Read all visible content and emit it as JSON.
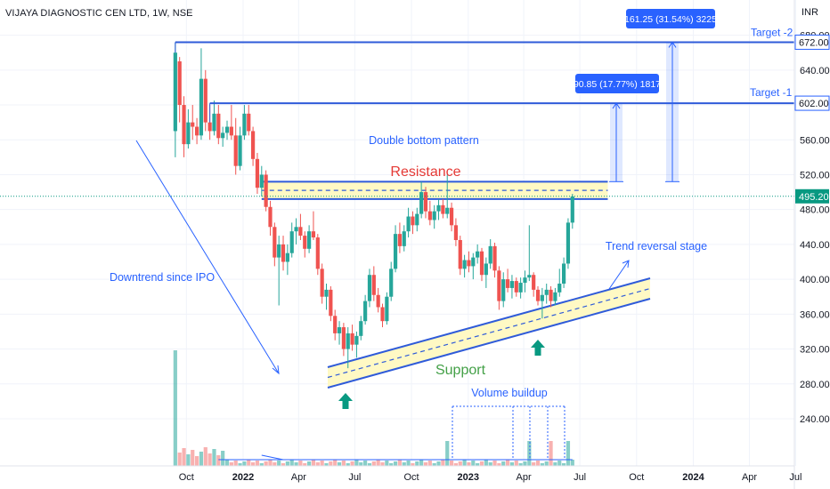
{
  "header": {
    "title": "VIJAYA DIAGNOSTIC CEN LTD, 1W, NSE",
    "currency": "INR"
  },
  "chart_data": {
    "type": "candlestick",
    "symbol": "VIJAYA DIAGNOSTIC CEN LTD",
    "interval": "1W",
    "exchange": "NSE",
    "y_axis": {
      "range": [
        190,
        700
      ],
      "ticks": [
        240,
        280,
        320,
        360,
        400,
        440,
        480,
        520,
        560,
        600,
        640,
        680
      ],
      "tick_labels": [
        "240.00",
        "280.00",
        "320.00",
        "360.00",
        "400.00",
        "440.00",
        "480.00",
        "520.00",
        "560.00",
        "600.00",
        "640.00",
        "680.00"
      ]
    },
    "x_axis": {
      "range": [
        "2021-09-06",
        "2024-06-10"
      ],
      "ticks": [
        {
          "date": "2021-10-01",
          "label": "Oct"
        },
        {
          "date": "2022-01-01",
          "label": "2022"
        },
        {
          "date": "2022-04-01",
          "label": "Apr"
        },
        {
          "date": "2022-07-01",
          "label": "Jul"
        },
        {
          "date": "2022-10-01",
          "label": "Oct"
        },
        {
          "date": "2023-01-01",
          "label": "2023"
        },
        {
          "date": "2023-04-01",
          "label": "Apr"
        },
        {
          "date": "2023-07-01",
          "label": "Jul"
        },
        {
          "date": "2023-10-01",
          "label": "Oct"
        },
        {
          "date": "2024-01-01",
          "label": "2024"
        },
        {
          "date": "2024-04-01",
          "label": "Apr"
        },
        {
          "date": "2024-06-15",
          "label": "Jul"
        }
      ]
    },
    "bold_tick_labels": [
      "2022",
      "2023",
      "2024"
    ],
    "price_labels": [
      {
        "value": 672,
        "label": "672.00",
        "style": "outline-blue"
      },
      {
        "value": 602,
        "label": "602.00",
        "style": "outline-blue"
      },
      {
        "value": 495.2,
        "label": "495.20",
        "style": "filled-green"
      }
    ],
    "current_price": 495.2,
    "candles": [
      {
        "d": "2021-09-13",
        "o": 570,
        "h": 672,
        "l": 540,
        "c": 660
      },
      {
        "d": "2021-09-20",
        "o": 650,
        "h": 655,
        "l": 580,
        "c": 600
      },
      {
        "d": "2021-09-27",
        "o": 600,
        "h": 610,
        "l": 540,
        "c": 555
      },
      {
        "d": "2021-10-04",
        "o": 555,
        "h": 595,
        "l": 550,
        "c": 580
      },
      {
        "d": "2021-10-11",
        "o": 580,
        "h": 600,
        "l": 560,
        "c": 575
      },
      {
        "d": "2021-10-18",
        "o": 575,
        "h": 585,
        "l": 555,
        "c": 565
      },
      {
        "d": "2021-10-25",
        "o": 565,
        "h": 665,
        "l": 560,
        "c": 630
      },
      {
        "d": "2021-11-01",
        "o": 630,
        "h": 640,
        "l": 570,
        "c": 580
      },
      {
        "d": "2021-11-08",
        "o": 580,
        "h": 600,
        "l": 560,
        "c": 570
      },
      {
        "d": "2021-11-15",
        "o": 570,
        "h": 605,
        "l": 565,
        "c": 590
      },
      {
        "d": "2021-11-22",
        "o": 590,
        "h": 600,
        "l": 555,
        "c": 562
      },
      {
        "d": "2021-11-29",
        "o": 562,
        "h": 575,
        "l": 552,
        "c": 568
      },
      {
        "d": "2021-12-06",
        "o": 568,
        "h": 582,
        "l": 560,
        "c": 575
      },
      {
        "d": "2021-12-13",
        "o": 575,
        "h": 600,
        "l": 560,
        "c": 565
      },
      {
        "d": "2021-12-20",
        "o": 565,
        "h": 585,
        "l": 520,
        "c": 530
      },
      {
        "d": "2021-12-27",
        "o": 530,
        "h": 575,
        "l": 525,
        "c": 565
      },
      {
        "d": "2022-01-03",
        "o": 565,
        "h": 600,
        "l": 560,
        "c": 590
      },
      {
        "d": "2022-01-10",
        "o": 590,
        "h": 600,
        "l": 565,
        "c": 570
      },
      {
        "d": "2022-01-17",
        "o": 570,
        "h": 575,
        "l": 530,
        "c": 538
      },
      {
        "d": "2022-01-24",
        "o": 538,
        "h": 545,
        "l": 498,
        "c": 505
      },
      {
        "d": "2022-01-31",
        "o": 505,
        "h": 530,
        "l": 495,
        "c": 520
      },
      {
        "d": "2022-02-07",
        "o": 520,
        "h": 525,
        "l": 478,
        "c": 483
      },
      {
        "d": "2022-02-14",
        "o": 483,
        "h": 490,
        "l": 450,
        "c": 460
      },
      {
        "d": "2022-02-21",
        "o": 460,
        "h": 465,
        "l": 415,
        "c": 425
      },
      {
        "d": "2022-02-28",
        "o": 425,
        "h": 450,
        "l": 370,
        "c": 440
      },
      {
        "d": "2022-03-07",
        "o": 440,
        "h": 450,
        "l": 410,
        "c": 420
      },
      {
        "d": "2022-03-14",
        "o": 420,
        "h": 440,
        "l": 405,
        "c": 430
      },
      {
        "d": "2022-03-21",
        "o": 430,
        "h": 465,
        "l": 425,
        "c": 455
      },
      {
        "d": "2022-03-28",
        "o": 455,
        "h": 470,
        "l": 440,
        "c": 460
      },
      {
        "d": "2022-04-04",
        "o": 460,
        "h": 475,
        "l": 445,
        "c": 450
      },
      {
        "d": "2022-04-11",
        "o": 450,
        "h": 455,
        "l": 425,
        "c": 435
      },
      {
        "d": "2022-04-18",
        "o": 435,
        "h": 462,
        "l": 430,
        "c": 455
      },
      {
        "d": "2022-04-25",
        "o": 455,
        "h": 478,
        "l": 445,
        "c": 448
      },
      {
        "d": "2022-05-02",
        "o": 448,
        "h": 452,
        "l": 405,
        "c": 412
      },
      {
        "d": "2022-05-09",
        "o": 412,
        "h": 418,
        "l": 372,
        "c": 380
      },
      {
        "d": "2022-05-16",
        "o": 380,
        "h": 395,
        "l": 365,
        "c": 388
      },
      {
        "d": "2022-05-23",
        "o": 388,
        "h": 392,
        "l": 352,
        "c": 358
      },
      {
        "d": "2022-05-30",
        "o": 358,
        "h": 365,
        "l": 330,
        "c": 338
      },
      {
        "d": "2022-06-06",
        "o": 338,
        "h": 352,
        "l": 325,
        "c": 345
      },
      {
        "d": "2022-06-13",
        "o": 345,
        "h": 350,
        "l": 312,
        "c": 320
      },
      {
        "d": "2022-06-20",
        "o": 320,
        "h": 345,
        "l": 298,
        "c": 338
      },
      {
        "d": "2022-06-27",
        "o": 338,
        "h": 348,
        "l": 318,
        "c": 325
      },
      {
        "d": "2022-07-04",
        "o": 325,
        "h": 340,
        "l": 310,
        "c": 335
      },
      {
        "d": "2022-07-11",
        "o": 335,
        "h": 358,
        "l": 330,
        "c": 352
      },
      {
        "d": "2022-07-18",
        "o": 352,
        "h": 382,
        "l": 348,
        "c": 375
      },
      {
        "d": "2022-07-25",
        "o": 375,
        "h": 412,
        "l": 368,
        "c": 405
      },
      {
        "d": "2022-08-01",
        "o": 405,
        "h": 415,
        "l": 375,
        "c": 382
      },
      {
        "d": "2022-08-08",
        "o": 382,
        "h": 390,
        "l": 362,
        "c": 368
      },
      {
        "d": "2022-08-15",
        "o": 368,
        "h": 372,
        "l": 345,
        "c": 352
      },
      {
        "d": "2022-08-22",
        "o": 352,
        "h": 385,
        "l": 348,
        "c": 380
      },
      {
        "d": "2022-08-29",
        "o": 380,
        "h": 420,
        "l": 375,
        "c": 412
      },
      {
        "d": "2022-09-05",
        "o": 412,
        "h": 462,
        "l": 408,
        "c": 452
      },
      {
        "d": "2022-09-12",
        "o": 452,
        "h": 465,
        "l": 430,
        "c": 438
      },
      {
        "d": "2022-09-19",
        "o": 438,
        "h": 462,
        "l": 432,
        "c": 455
      },
      {
        "d": "2022-09-26",
        "o": 455,
        "h": 482,
        "l": 448,
        "c": 472
      },
      {
        "d": "2022-10-03",
        "o": 472,
        "h": 478,
        "l": 452,
        "c": 462
      },
      {
        "d": "2022-10-10",
        "o": 462,
        "h": 482,
        "l": 455,
        "c": 475
      },
      {
        "d": "2022-10-17",
        "o": 475,
        "h": 512,
        "l": 470,
        "c": 500
      },
      {
        "d": "2022-10-24",
        "o": 500,
        "h": 506,
        "l": 470,
        "c": 478
      },
      {
        "d": "2022-10-31",
        "o": 478,
        "h": 490,
        "l": 462,
        "c": 468
      },
      {
        "d": "2022-11-07",
        "o": 468,
        "h": 485,
        "l": 458,
        "c": 478
      },
      {
        "d": "2022-11-14",
        "o": 478,
        "h": 492,
        "l": 468,
        "c": 485
      },
      {
        "d": "2022-11-21",
        "o": 485,
        "h": 492,
        "l": 470,
        "c": 475
      },
      {
        "d": "2022-11-28",
        "o": 475,
        "h": 520,
        "l": 470,
        "c": 482
      },
      {
        "d": "2022-12-05",
        "o": 482,
        "h": 488,
        "l": 455,
        "c": 462
      },
      {
        "d": "2022-12-12",
        "o": 462,
        "h": 470,
        "l": 438,
        "c": 445
      },
      {
        "d": "2022-12-19",
        "o": 445,
        "h": 450,
        "l": 405,
        "c": 412
      },
      {
        "d": "2022-12-26",
        "o": 412,
        "h": 428,
        "l": 402,
        "c": 422
      },
      {
        "d": "2023-01-02",
        "o": 422,
        "h": 432,
        "l": 408,
        "c": 415
      },
      {
        "d": "2023-01-09",
        "o": 415,
        "h": 430,
        "l": 400,
        "c": 425
      },
      {
        "d": "2023-01-16",
        "o": 425,
        "h": 440,
        "l": 418,
        "c": 432
      },
      {
        "d": "2023-01-23",
        "o": 432,
        "h": 436,
        "l": 398,
        "c": 405
      },
      {
        "d": "2023-01-30",
        "o": 405,
        "h": 425,
        "l": 390,
        "c": 418
      },
      {
        "d": "2023-02-06",
        "o": 418,
        "h": 446,
        "l": 412,
        "c": 438
      },
      {
        "d": "2023-02-13",
        "o": 438,
        "h": 442,
        "l": 402,
        "c": 410
      },
      {
        "d": "2023-02-20",
        "o": 410,
        "h": 415,
        "l": 365,
        "c": 375
      },
      {
        "d": "2023-02-27",
        "o": 375,
        "h": 408,
        "l": 368,
        "c": 400
      },
      {
        "d": "2023-03-06",
        "o": 400,
        "h": 412,
        "l": 385,
        "c": 390
      },
      {
        "d": "2023-03-13",
        "o": 390,
        "h": 405,
        "l": 378,
        "c": 398
      },
      {
        "d": "2023-03-20",
        "o": 398,
        "h": 402,
        "l": 380,
        "c": 385
      },
      {
        "d": "2023-03-27",
        "o": 385,
        "h": 402,
        "l": 378,
        "c": 396
      },
      {
        "d": "2023-04-03",
        "o": 396,
        "h": 410,
        "l": 385,
        "c": 402
      },
      {
        "d": "2023-04-10",
        "o": 402,
        "h": 462,
        "l": 398,
        "c": 405
      },
      {
        "d": "2023-04-17",
        "o": 405,
        "h": 408,
        "l": 380,
        "c": 388
      },
      {
        "d": "2023-04-24",
        "o": 388,
        "h": 392,
        "l": 370,
        "c": 375
      },
      {
        "d": "2023-05-01",
        "o": 375,
        "h": 390,
        "l": 355,
        "c": 382
      },
      {
        "d": "2023-05-08",
        "o": 382,
        "h": 395,
        "l": 372,
        "c": 388
      },
      {
        "d": "2023-05-15",
        "o": 388,
        "h": 392,
        "l": 368,
        "c": 375
      },
      {
        "d": "2023-05-22",
        "o": 375,
        "h": 390,
        "l": 370,
        "c": 385
      },
      {
        "d": "2023-05-29",
        "o": 385,
        "h": 412,
        "l": 380,
        "c": 395
      },
      {
        "d": "2023-06-05",
        "o": 395,
        "h": 425,
        "l": 390,
        "c": 418
      },
      {
        "d": "2023-06-12",
        "o": 418,
        "h": 470,
        "l": 412,
        "c": 465
      },
      {
        "d": "2023-06-19",
        "o": 465,
        "h": 498,
        "l": 458,
        "c": 495
      }
    ],
    "volume": {
      "ipo_spike_week": "2021-09-13",
      "buildup_weeks": [
        "2022-11-28",
        "2023-04-10",
        "2023-05-15",
        "2023-06-12"
      ]
    },
    "levels": [
      {
        "name": "Target -2",
        "value": 672
      },
      {
        "name": "Target -1",
        "value": 602
      },
      {
        "name": "Resistance",
        "range": [
          492,
          512
        ]
      }
    ],
    "annotations": {
      "target2": "Target -2",
      "target1": "Target -1",
      "measure2": "161.25 (31.54%) 3225",
      "measure1": "90.85 (17.77%) 1817",
      "double_bottom": "Double bottom pattern",
      "resistance": "Resistance",
      "trend_reversal": "Trend reversal stage",
      "downtrend": "Downtrend since IPO",
      "support": "Support",
      "volume_buildup": "Volume buildup"
    }
  },
  "colors": {
    "up": "#26a69a",
    "down": "#ef5350",
    "blue": "#2962ff",
    "line_blue": "#2f5bd9",
    "band_fill": "#fff9c4",
    "label_blue": "#2962ff",
    "resistance_text": "#e53935",
    "support_text": "#43a047",
    "arrow_green": "#089981",
    "grid": "#f0f3fa",
    "text": "#131722",
    "price_tag": "#089981"
  }
}
